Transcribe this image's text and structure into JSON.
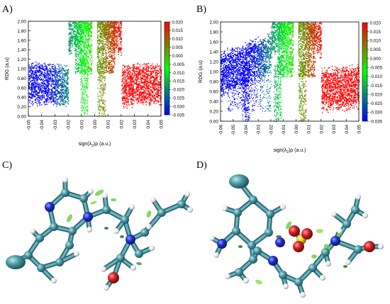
{
  "panels": [
    {
      "letter": "A)"
    },
    {
      "letter": "B)"
    },
    {
      "letter": "C)"
    },
    {
      "letter": "D)"
    }
  ],
  "chart_data": [
    {
      "type": "scatter",
      "panel": "A)",
      "ylabel": "RDG (a.u)",
      "xlabel_parts": [
        "sign(λ",
        "2",
        ")ρ (a.u.)"
      ],
      "xlim": [
        -0.05,
        0.05
      ],
      "ylim": [
        0.0,
        2.0
      ],
      "xticks": [
        "-0.05",
        "-0.04",
        "-0.03",
        "-0.02",
        "-0.01",
        "0.00",
        "0.01",
        "0.02",
        "0.03",
        "0.04",
        "0.05"
      ],
      "yticks": [
        "0.00",
        "0.20",
        "0.40",
        "0.60",
        "0.80",
        "1.00",
        "1.20",
        "1.40",
        "1.60",
        "1.80",
        "2.00"
      ],
      "colorbar": {
        "min": -0.035,
        "max": 0.02,
        "ticks": [
          "0.020",
          "0.015",
          "0.010",
          "0.005",
          "0.000",
          "-0.005",
          "-0.010",
          "-0.015",
          "-0.020",
          "-0.025",
          "-0.030",
          "-0.035"
        ],
        "colors": [
          "#0000ff",
          "#00ff00",
          "#ff0000"
        ]
      },
      "spikes": [
        -0.008,
        0.005
      ],
      "grid": false
    },
    {
      "type": "scatter",
      "panel": "B)",
      "ylabel": "RDG (a.u)",
      "xlabel_parts": [
        "sign(λ",
        "2",
        ")ρ (a.u.)"
      ],
      "xlim": [
        -0.06,
        0.05
      ],
      "ylim": [
        0.0,
        2.0
      ],
      "xticks": [
        "-0.06",
        "-0.05",
        "-0.04",
        "-0.03",
        "-0.02",
        "-0.01",
        "0.00",
        "0.01",
        "0.02",
        "0.03",
        "0.04",
        "0.05"
      ],
      "yticks": [
        "0.00",
        "0.20",
        "0.40",
        "0.60",
        "0.80",
        "1.00",
        "1.20",
        "1.40",
        "1.60",
        "1.80",
        "2.00"
      ],
      "colorbar": {
        "min": -0.035,
        "max": 0.02,
        "ticks": [
          "0.020",
          "0.015",
          "0.010",
          "0.005",
          "0.000",
          "-0.005",
          "-0.010",
          "-0.015",
          "-0.020",
          "-0.025",
          "-0.030",
          "-0.035"
        ],
        "colors": [
          "#0000ff",
          "#00ff00",
          "#ff0000"
        ]
      },
      "spikes": [
        -0.04,
        -0.015,
        0.005
      ],
      "grid": false
    }
  ],
  "colors": {
    "carbon": "#4a9aa6",
    "nitrogen": "#1f2fd0",
    "oxygen": "#d42020",
    "hydrogen": "#f4f4f4",
    "sulfur": "#e6d020",
    "isosurface": "#6fd14a"
  }
}
